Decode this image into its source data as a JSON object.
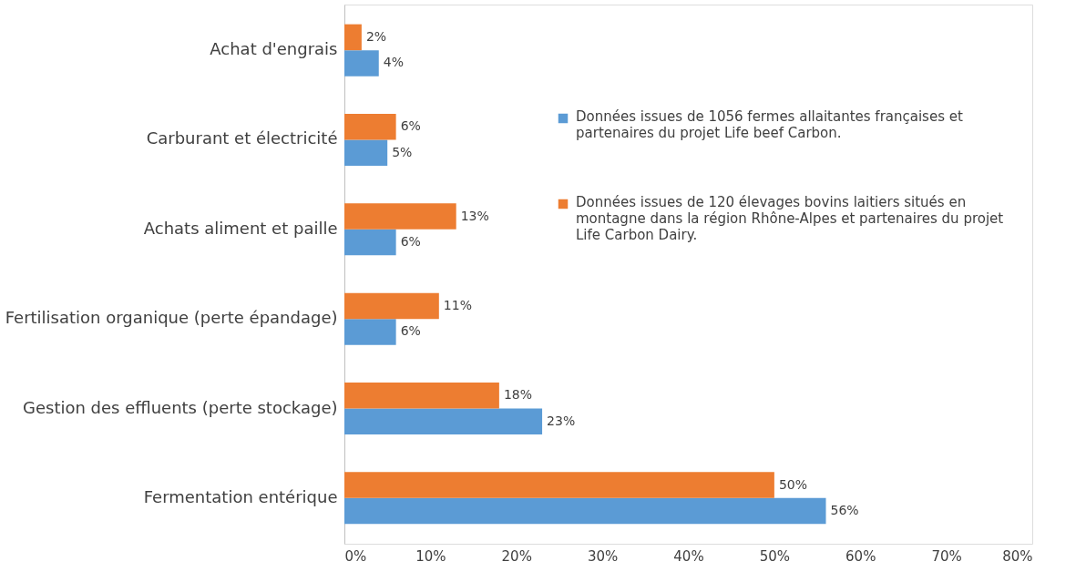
{
  "chart_data": {
    "type": "bar",
    "orientation": "horizontal",
    "categories": [
      "Achat d'engrais",
      "Carburant et électricité",
      "Achats aliment et paille",
      "Fertilisation organique (perte épandage)",
      "Gestion des effluents (perte stockage)",
      "Fermentation entérique"
    ],
    "series": [
      {
        "name": "Données issues de 1056 fermes allaitantes françaises et partenaires du projet Life beef Carbon.",
        "color": "#5b9bd5",
        "values": [
          4,
          5,
          6,
          6,
          23,
          56
        ],
        "value_labels": [
          "4%",
          "5%",
          "6%",
          "6%",
          "23%",
          "56%"
        ]
      },
      {
        "name": "Données issues de 120 élevages bovins laitiers situés en montagne dans la région Rhône-Alpes et partenaires du projet Life Carbon Dairy.",
        "color": "#ed7d31",
        "values": [
          2,
          6,
          13,
          11,
          18,
          50
        ],
        "value_labels": [
          "2%",
          "6%",
          "13%",
          "11%",
          "18%",
          "50%"
        ]
      }
    ],
    "xlim": [
      0,
      80
    ],
    "xticks": [
      {
        "value": 0,
        "label": "0%"
      },
      {
        "value": 10,
        "label": "10%"
      },
      {
        "value": 20,
        "label": "20%"
      },
      {
        "value": 30,
        "label": "30%"
      },
      {
        "value": 40,
        "label": "40%"
      },
      {
        "value": 50,
        "label": "50%"
      },
      {
        "value": 60,
        "label": "60%"
      },
      {
        "value": 70,
        "label": "70%"
      },
      {
        "value": 80,
        "label": "80%"
      }
    ],
    "grid": false,
    "legend": "right"
  }
}
